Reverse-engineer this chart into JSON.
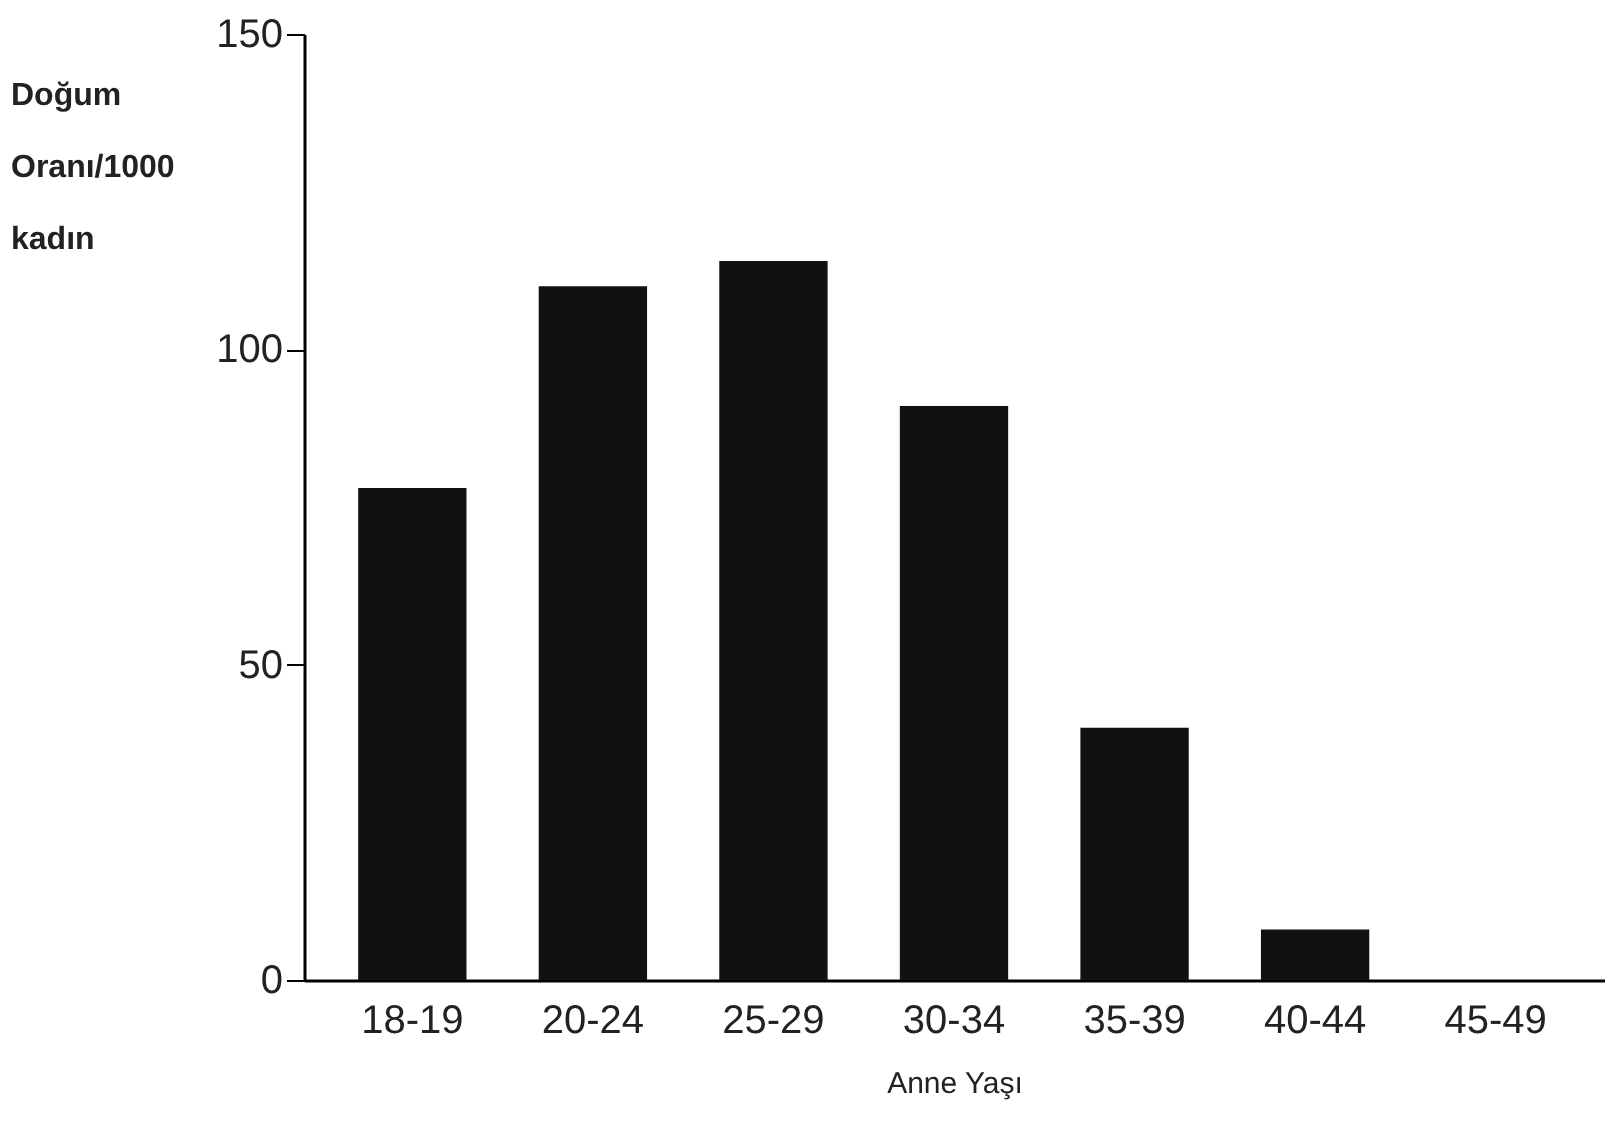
{
  "chart_data": {
    "type": "bar",
    "xlabel": "Anne Yaşı",
    "ylabel": "Doğum\nOranı/1000\nkadın",
    "categories": [
      "18-19",
      "20-24",
      "25-29",
      "30-34",
      "35-39",
      "40-44",
      "45-49"
    ],
    "values": [
      78,
      110,
      114,
      91,
      40,
      8,
      0
    ],
    "color": "#111111",
    "ylim": [
      0,
      150
    ],
    "yticks": [
      0,
      50,
      100,
      150
    ],
    "grid": false
  }
}
